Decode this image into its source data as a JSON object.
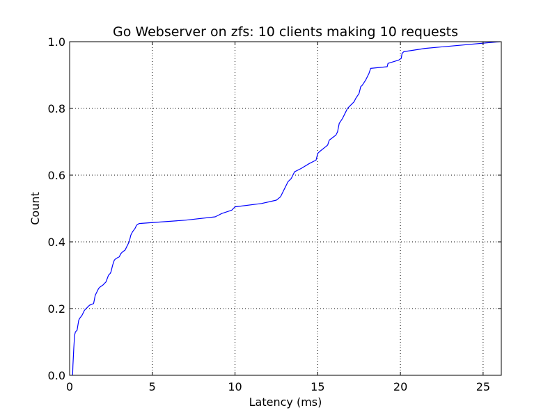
{
  "chart_data": {
    "type": "line",
    "title": "Go Webserver on zfs: 10 clients making 10 requests",
    "xlabel": "Latency (ms)",
    "ylabel": "Count",
    "xlim": [
      0,
      26.1
    ],
    "ylim": [
      0,
      1.0
    ],
    "xticks": [
      0,
      5,
      10,
      15,
      20,
      25
    ],
    "xtick_labels": [
      "0",
      "5",
      "10",
      "15",
      "20",
      "25"
    ],
    "yticks": [
      0.0,
      0.2,
      0.4,
      0.6,
      0.8,
      1.0
    ],
    "ytick_labels": [
      "0.0",
      "0.2",
      "0.4",
      "0.6",
      "0.8",
      "1.0"
    ],
    "grid": true,
    "line_color": "#0000ff",
    "series": [
      {
        "x": [
          0.18,
          0.2,
          0.25,
          0.3,
          0.35,
          0.45,
          0.55,
          0.6,
          0.75,
          0.9,
          1.0,
          1.1,
          1.2,
          1.45,
          1.55,
          1.65,
          1.75,
          1.85,
          2.0,
          2.2,
          2.35,
          2.45,
          2.5,
          2.6,
          2.7,
          2.8,
          3.0,
          3.1,
          3.2,
          3.35,
          3.45,
          3.55,
          3.6,
          3.7,
          3.8,
          3.95,
          4.05,
          4.2,
          7.0,
          8.8,
          9.0,
          9.2,
          9.8,
          9.9,
          10.0,
          11.6,
          12.5,
          12.75,
          12.9,
          13.0,
          13.2,
          13.4,
          13.5,
          13.6,
          14.0,
          14.5,
          14.9,
          15.0,
          15.1,
          15.6,
          15.7,
          16.1,
          16.2,
          16.3,
          16.5,
          16.7,
          16.8,
          16.9,
          17.2,
          17.3,
          17.5,
          17.6,
          17.7,
          17.9,
          18.1,
          18.2,
          19.2,
          19.25,
          19.9,
          20.05,
          20.1,
          20.2,
          21.5,
          26.0
        ],
        "y": [
          0.0,
          0.03,
          0.08,
          0.12,
          0.13,
          0.135,
          0.165,
          0.17,
          0.18,
          0.195,
          0.2,
          0.205,
          0.21,
          0.215,
          0.24,
          0.25,
          0.26,
          0.265,
          0.27,
          0.28,
          0.3,
          0.305,
          0.31,
          0.33,
          0.345,
          0.35,
          0.355,
          0.365,
          0.37,
          0.375,
          0.385,
          0.395,
          0.4,
          0.42,
          0.43,
          0.44,
          0.45,
          0.455,
          0.465,
          0.475,
          0.48,
          0.485,
          0.495,
          0.5,
          0.505,
          0.515,
          0.525,
          0.535,
          0.55,
          0.56,
          0.58,
          0.59,
          0.6,
          0.61,
          0.62,
          0.635,
          0.645,
          0.665,
          0.67,
          0.69,
          0.705,
          0.72,
          0.73,
          0.755,
          0.77,
          0.79,
          0.8,
          0.805,
          0.82,
          0.83,
          0.845,
          0.865,
          0.87,
          0.885,
          0.905,
          0.92,
          0.925,
          0.935,
          0.945,
          0.95,
          0.965,
          0.97,
          0.98,
          1.0
        ]
      }
    ]
  }
}
